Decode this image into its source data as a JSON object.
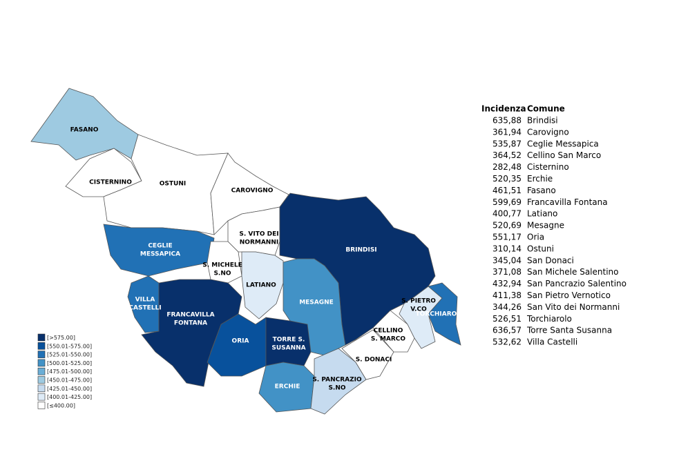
{
  "legend": {
    "items": [
      {
        "label": "[>575.00]",
        "color": "#08306b"
      },
      {
        "label": "[550.01-575.00]",
        "color": "#08519c"
      },
      {
        "label": "[525.01-550.00]",
        "color": "#2171b5"
      },
      {
        "label": "[500.01-525.00]",
        "color": "#4292c6"
      },
      {
        "label": "[475.01-500.00]",
        "color": "#6baed6"
      },
      {
        "label": "[450.01-475.00]",
        "color": "#9ecae1"
      },
      {
        "label": "[425.01-450.00]",
        "color": "#c6dbef"
      },
      {
        "label": "[400.01-425.00]",
        "color": "#deebf7"
      },
      {
        "label": "[≤400.00]",
        "color": "#ffffff"
      }
    ]
  },
  "regions": [
    {
      "label": [
        "FASANO"
      ],
      "color": "#9ecae1"
    },
    {
      "label": [
        "CISTERNINO"
      ],
      "color": "#ffffff"
    },
    {
      "label": [
        "OSTUNI"
      ],
      "color": "#ffffff"
    },
    {
      "label": [
        "CAROVIGNO"
      ],
      "color": "#ffffff"
    },
    {
      "label": [
        "S. VITO DEI",
        "NORMANNI"
      ],
      "color": "#ffffff"
    },
    {
      "label": [
        "CEGLIE",
        "MESSAPICA"
      ],
      "color": "#2171b5"
    },
    {
      "label": [
        "S. MICHELE",
        "S.NO"
      ],
      "color": "#ffffff"
    },
    {
      "label": [
        "LATIANO"
      ],
      "color": "#deebf7"
    },
    {
      "label": [
        "BRINDISI"
      ],
      "color": "#08306b"
    },
    {
      "label": [
        "MESAGNE"
      ],
      "color": "#4292c6"
    },
    {
      "label": [
        "VILLA",
        "CASTELLI"
      ],
      "color": "#2171b5"
    },
    {
      "label": [
        "FRANCAVILLA",
        "FONTANA"
      ],
      "color": "#08306b"
    },
    {
      "label": [
        "ORIA"
      ],
      "color": "#08519c"
    },
    {
      "label": [
        "TORRE S.",
        "SUSANNA"
      ],
      "color": "#08306b"
    },
    {
      "label": [
        "ERCHIE"
      ],
      "color": "#4292c6"
    },
    {
      "label": [
        "S. PANCRAZIO",
        "S.NO"
      ],
      "color": "#c6dbef"
    },
    {
      "label": [
        "S. DONACI"
      ],
      "color": "#ffffff"
    },
    {
      "label": [
        "CELLINO",
        "S. MARCO"
      ],
      "color": "#ffffff"
    },
    {
      "label": [
        "S. PIETRO",
        "V.CO"
      ],
      "color": "#deebf7"
    },
    {
      "label": [
        "TORCHIAROLO"
      ],
      "color": "#2171b5"
    }
  ],
  "table": {
    "headers": [
      "Incidenza",
      "Comune"
    ],
    "rows": [
      [
        "635,88",
        "Brindisi"
      ],
      [
        "361,94",
        "Carovigno"
      ],
      [
        "535,87",
        "Ceglie Messapica"
      ],
      [
        "364,52",
        "Cellino San Marco"
      ],
      [
        "282,48",
        "Cisternino"
      ],
      [
        "520,35",
        "Erchie"
      ],
      [
        "461,51",
        "Fasano"
      ],
      [
        "599,69",
        "Francavilla Fontana"
      ],
      [
        "400,77",
        "Latiano"
      ],
      [
        "520,69",
        "Mesagne"
      ],
      [
        "551,17",
        "Oria"
      ],
      [
        "310,14",
        "Ostuni"
      ],
      [
        "345,04",
        "San Donaci"
      ],
      [
        "371,08",
        "San Michele Salentino"
      ],
      [
        "432,94",
        "San Pancrazio Salentino"
      ],
      [
        "411,38",
        "San Pietro Vernotico"
      ],
      [
        "344,26",
        "San Vito dei Normanni"
      ],
      [
        "526,51",
        "Torchiarolo"
      ],
      [
        "636,57",
        "Torre Santa Susanna"
      ],
      [
        "532,62",
        "Villa Castelli"
      ]
    ]
  }
}
